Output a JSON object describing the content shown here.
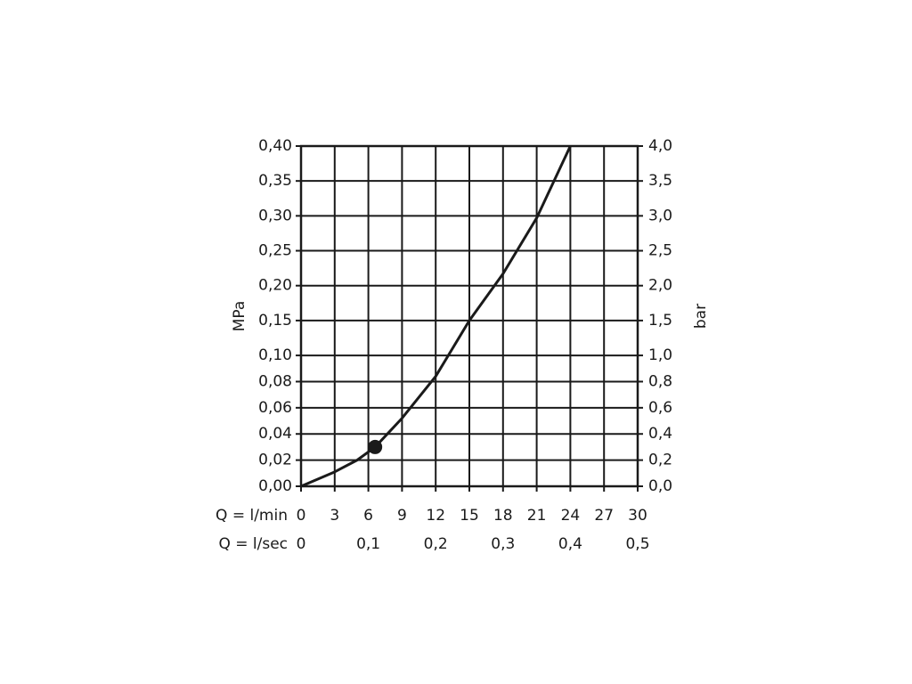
{
  "chart_data": {
    "type": "line",
    "x_label": "Q = l/min",
    "x2_label": "Q = l/sec",
    "y_label": "MPa",
    "y2_label": "bar",
    "x": [
      0,
      3,
      5,
      6.6,
      9,
      12,
      15,
      18,
      21,
      24
    ],
    "series": [
      {
        "color": "#1a1a1a",
        "values": [
          0,
          0.011,
          0.02,
          0.03,
          0.052,
          0.084,
          0.15,
          0.217,
          0.297,
          0.4
        ]
      }
    ],
    "point": {
      "x": 6.6,
      "y": 0.03
    },
    "xlim": [
      0,
      30
    ],
    "xticks": [
      0,
      3,
      6,
      9,
      12,
      15,
      18,
      21,
      24,
      27,
      30
    ],
    "x2lim": [
      0,
      0.5
    ],
    "x2ticks": [
      0,
      {
        "value": 0.1,
        "label": "0,1"
      },
      {
        "value": 0.2,
        "label": "0,2"
      },
      {
        "value": 0.3,
        "label": "0,3"
      },
      {
        "value": 0.4,
        "label": "0,4"
      },
      {
        "value": 0.5,
        "label": "0,5"
      }
    ],
    "ylim": [
      0,
      0.4
    ],
    "yticks": [
      {
        "value": 0,
        "label": "0,00"
      },
      {
        "value": 0.02,
        "label": "0,02"
      },
      {
        "value": 0.04,
        "label": "0,04"
      },
      {
        "value": 0.06,
        "label": "0,06"
      },
      {
        "value": 0.08,
        "label": "0,08"
      },
      {
        "value": 0.1,
        "label": "0,10"
      },
      {
        "value": 0.15,
        "label": "0,15"
      },
      {
        "value": 0.2,
        "label": "0,20"
      },
      {
        "value": 0.25,
        "label": "0,25"
      },
      {
        "value": 0.3,
        "label": "0,30"
      },
      {
        "value": 0.35,
        "label": "0,35"
      },
      {
        "value": 0.4,
        "label": "0,40"
      }
    ],
    "y2lim": [
      0,
      4
    ],
    "y2ticks": [
      {
        "value": 0,
        "label": "0,0"
      },
      {
        "value": 0.2,
        "label": "0,2"
      },
      {
        "value": 0.4,
        "label": "0,4"
      },
      {
        "value": 0.6,
        "label": "0,6"
      },
      {
        "value": 0.8,
        "label": "0,8"
      },
      {
        "value": 1,
        "label": "1,0"
      },
      {
        "value": 1.5,
        "label": "1,5"
      },
      {
        "value": 2,
        "label": "2,0"
      },
      {
        "value": 2.5,
        "label": "2,5"
      },
      {
        "value": 3,
        "label": "3,0"
      },
      {
        "value": 3.5,
        "label": "3,5"
      },
      {
        "value": 4,
        "label": "4,0"
      }
    ],
    "grid": true
  }
}
